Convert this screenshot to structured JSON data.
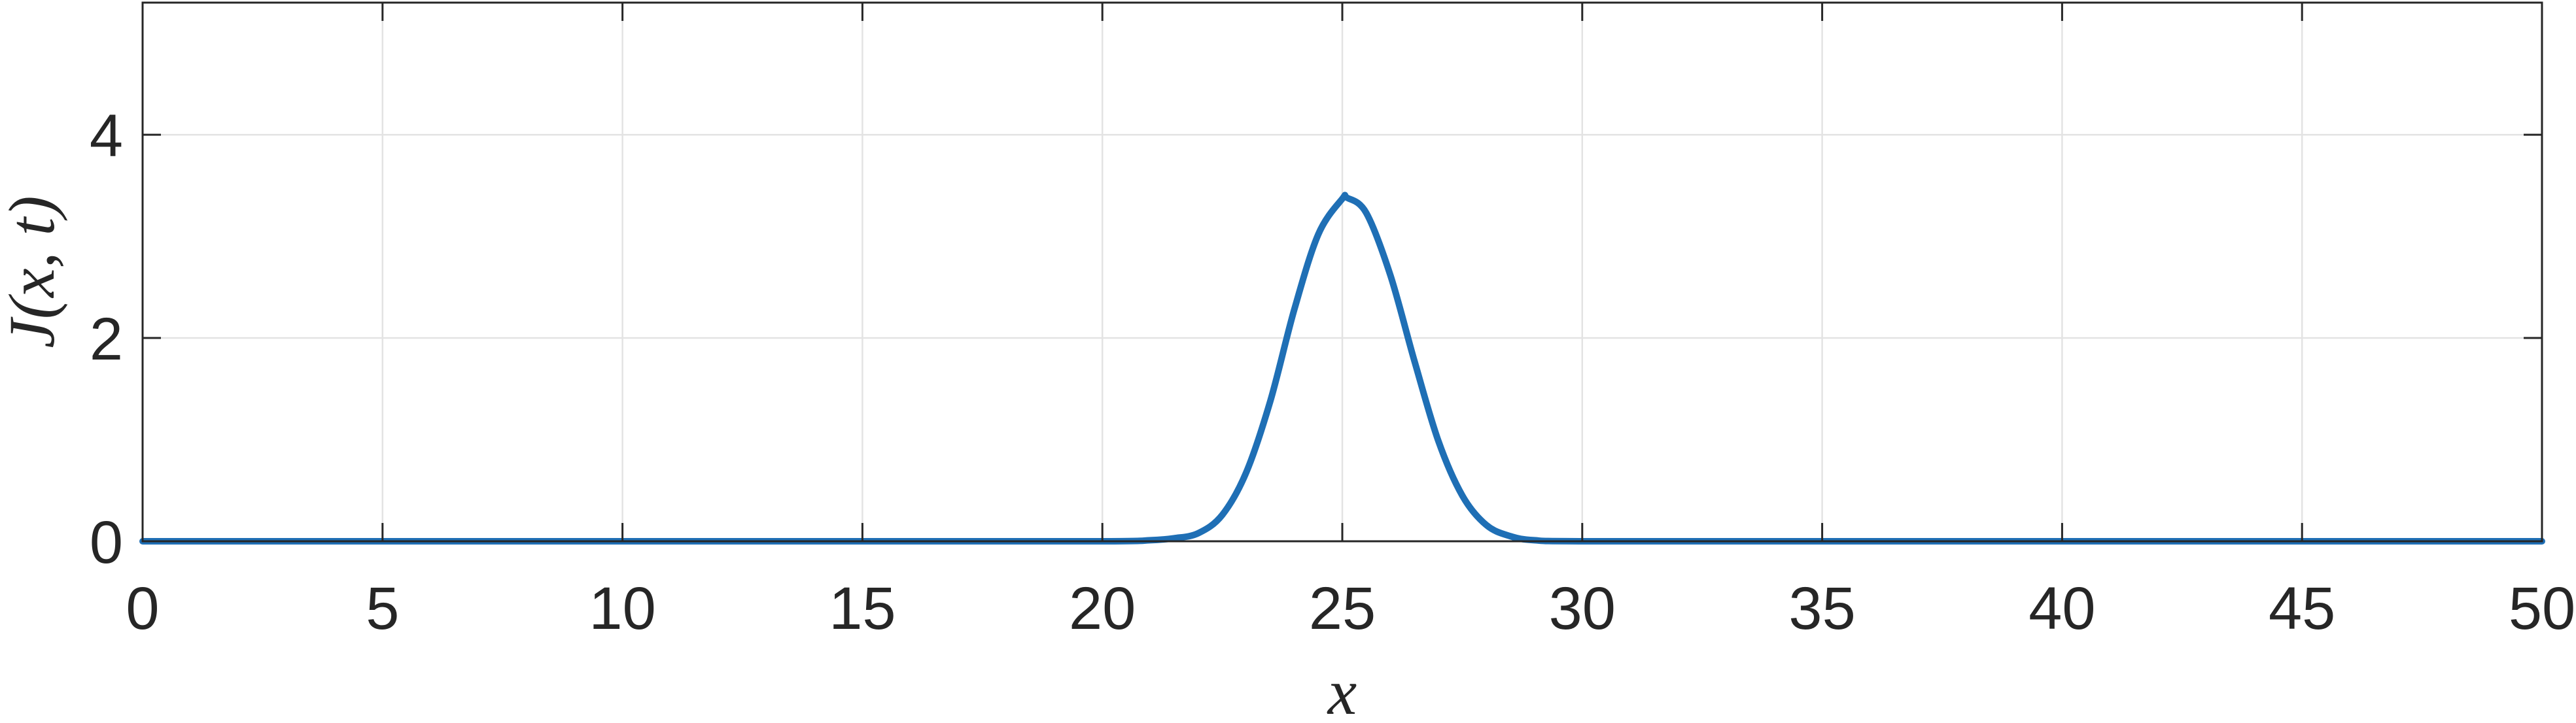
{
  "chart_data": {
    "type": "line",
    "xlabel": "x",
    "ylabel": "J(x, t)",
    "xlim": [
      0,
      50
    ],
    "ylim": [
      0,
      5.3
    ],
    "xticks": [
      0,
      5,
      10,
      15,
      20,
      25,
      30,
      35,
      40,
      45,
      50
    ],
    "yticks": [
      0,
      2,
      4
    ],
    "grid": true,
    "series": [
      {
        "color": "#1f6fb5",
        "x": [
          0,
          5,
          10,
          15,
          20,
          21,
          21.5,
          22,
          22.5,
          23,
          23.5,
          24,
          24.5,
          25,
          25.1,
          25.5,
          26,
          26.5,
          27,
          27.5,
          28,
          28.5,
          29,
          30,
          35,
          40,
          45,
          50
        ],
        "y": [
          0,
          0,
          0,
          0,
          0,
          0.01,
          0.03,
          0.08,
          0.26,
          0.68,
          1.38,
          2.28,
          3.02,
          3.37,
          3.38,
          3.23,
          2.62,
          1.78,
          0.99,
          0.45,
          0.16,
          0.05,
          0.01,
          0,
          0,
          0,
          0,
          0
        ]
      }
    ]
  }
}
